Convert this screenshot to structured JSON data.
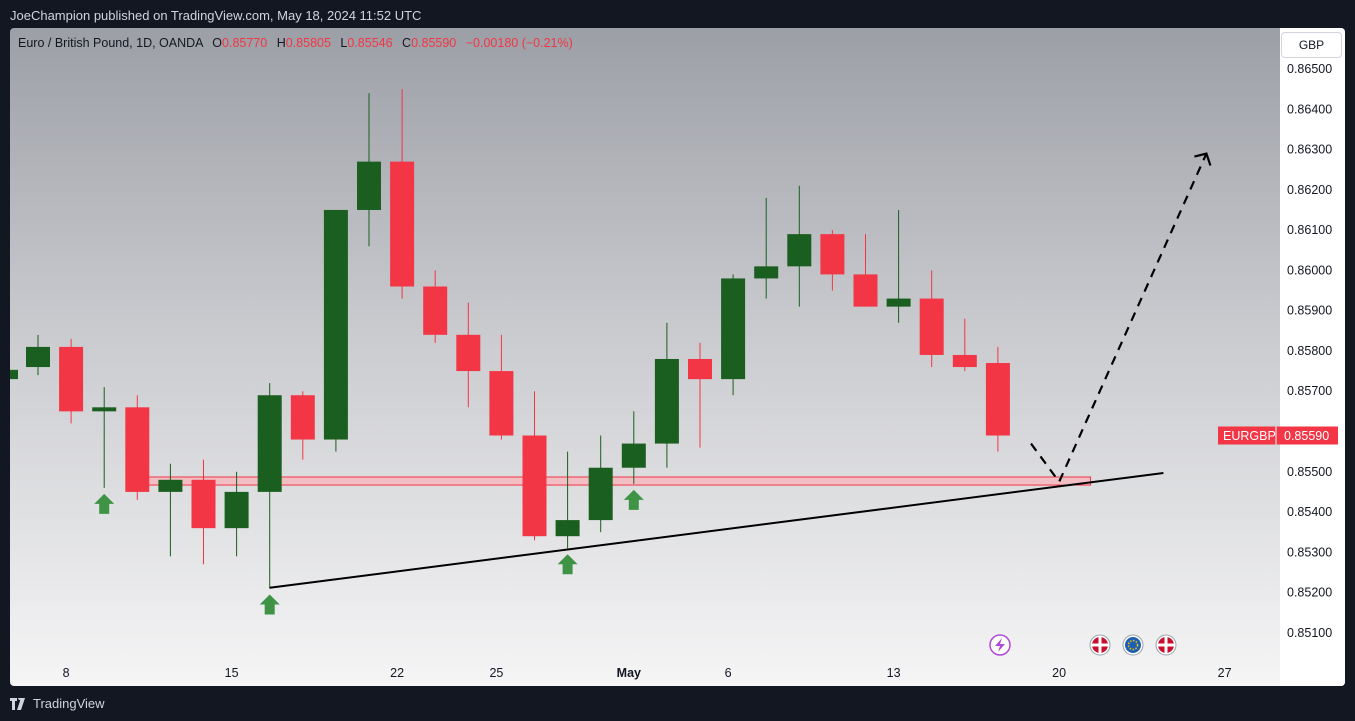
{
  "header": {
    "published": "JoeChampion published on TradingView.com, May 18, 2024 11:52 UTC"
  },
  "legend": {
    "symbol": "Euro / British Pound, 1D, OANDA",
    "o_label": "O",
    "o_value": "0.85770",
    "h_label": "H",
    "h_value": "0.85805",
    "l_label": "L",
    "l_value": "0.85546",
    "c_label": "C",
    "c_value": "0.85590",
    "change": "−0.00180 (−0.21%)"
  },
  "currency_button": "GBP",
  "price_tag": {
    "symbol": "EURGBP",
    "value": "0.85590"
  },
  "footer": {
    "brand": "TradingView"
  },
  "colors": {
    "up": "#1a5e20",
    "down": "#f23645",
    "zone_fill": "#f4b8be",
    "zone_stroke": "#f23645",
    "arrow": "#3e9444"
  },
  "chart_data": {
    "type": "candlestick",
    "ylim": [
      0.8505,
      0.8656
    ],
    "y_ticks": [
      "0.85100",
      "0.85200",
      "0.85300",
      "0.85400",
      "0.85500",
      "0.85600",
      "0.85700",
      "0.85800",
      "0.85900",
      "0.86000",
      "0.86100",
      "0.86200",
      "0.86300",
      "0.86400",
      "0.86500"
    ],
    "x_ticks": [
      {
        "label": "8",
        "slot": 0.85
      },
      {
        "label": "15",
        "slot": 5.85
      },
      {
        "label": "22",
        "slot": 10.85
      },
      {
        "label": "25",
        "slot": 13.85
      },
      {
        "label": "May",
        "slot": 17.85,
        "bold": true
      },
      {
        "label": "6",
        "slot": 20.85
      },
      {
        "label": "13",
        "slot": 25.85
      },
      {
        "label": "20",
        "slot": 30.85
      },
      {
        "label": "27",
        "slot": 35.85
      }
    ],
    "candles": [
      {
        "slot": 0,
        "o": 0.8576,
        "h": 0.8584,
        "l": 0.8574,
        "c": 0.8581
      },
      {
        "slot": 1,
        "o": 0.8581,
        "h": 0.8583,
        "l": 0.8562,
        "c": 0.8565
      },
      {
        "slot": 2,
        "o": 0.8565,
        "h": 0.8571,
        "l": 0.8546,
        "c": 0.8566
      },
      {
        "slot": 3,
        "o": 0.8566,
        "h": 0.8569,
        "l": 0.8543,
        "c": 0.8545
      },
      {
        "slot": 4,
        "o": 0.8545,
        "h": 0.8552,
        "l": 0.8529,
        "c": 0.8548
      },
      {
        "slot": 5,
        "o": 0.8548,
        "h": 0.8553,
        "l": 0.8527,
        "c": 0.8536
      },
      {
        "slot": 6,
        "o": 0.8536,
        "h": 0.855,
        "l": 0.8529,
        "c": 0.8545
      },
      {
        "slot": 7,
        "o": 0.8545,
        "h": 0.8572,
        "l": 0.8521,
        "c": 0.8569
      },
      {
        "slot": 8,
        "o": 0.8569,
        "h": 0.857,
        "l": 0.8553,
        "c": 0.8558
      },
      {
        "slot": 9,
        "o": 0.8558,
        "h": 0.8615,
        "l": 0.8555,
        "c": 0.8615
      },
      {
        "slot": 10,
        "o": 0.8615,
        "h": 0.8644,
        "l": 0.8606,
        "c": 0.8627
      },
      {
        "slot": 11,
        "o": 0.8627,
        "h": 0.8645,
        "l": 0.8593,
        "c": 0.8596
      },
      {
        "slot": 12,
        "o": 0.8596,
        "h": 0.86,
        "l": 0.8582,
        "c": 0.8584
      },
      {
        "slot": 13,
        "o": 0.8584,
        "h": 0.8592,
        "l": 0.8566,
        "c": 0.8575
      },
      {
        "slot": 14,
        "o": 0.8575,
        "h": 0.8584,
        "l": 0.8558,
        "c": 0.8559
      },
      {
        "slot": 15,
        "o": 0.8559,
        "h": 0.857,
        "l": 0.8533,
        "c": 0.8534
      },
      {
        "slot": 16,
        "o": 0.8534,
        "h": 0.8555,
        "l": 0.8531,
        "c": 0.8538
      },
      {
        "slot": 17,
        "o": 0.8538,
        "h": 0.8559,
        "l": 0.8535,
        "c": 0.8551
      },
      {
        "slot": 18,
        "o": 0.8551,
        "h": 0.8565,
        "l": 0.8547,
        "c": 0.8557
      },
      {
        "slot": 19,
        "o": 0.8557,
        "h": 0.8587,
        "l": 0.8551,
        "c": 0.8578
      },
      {
        "slot": 20,
        "o": 0.8578,
        "h": 0.8582,
        "l": 0.8556,
        "c": 0.8573
      },
      {
        "slot": 21,
        "o": 0.8573,
        "h": 0.8599,
        "l": 0.8569,
        "c": 0.8598
      },
      {
        "slot": 22,
        "o": 0.8598,
        "h": 0.8618,
        "l": 0.8593,
        "c": 0.8601
      },
      {
        "slot": 23,
        "o": 0.8601,
        "h": 0.8621,
        "l": 0.8591,
        "c": 0.8609
      },
      {
        "slot": 24,
        "o": 0.8609,
        "h": 0.861,
        "l": 0.8595,
        "c": 0.8599
      },
      {
        "slot": 25,
        "o": 0.8599,
        "h": 0.8609,
        "l": 0.8591,
        "c": 0.8591
      },
      {
        "slot": 26,
        "o": 0.8591,
        "h": 0.8615,
        "l": 0.8587,
        "c": 0.8593
      },
      {
        "slot": 27,
        "o": 0.8593,
        "h": 0.86,
        "l": 0.8576,
        "c": 0.8579
      },
      {
        "slot": 28,
        "o": 0.8579,
        "h": 0.8588,
        "l": 0.8575,
        "c": 0.8576
      },
      {
        "slot": 29,
        "o": 0.8577,
        "h": 0.8581,
        "l": 0.8555,
        "c": 0.8559
      }
    ],
    "support_zone": {
      "y_low": 0.85467,
      "y_high": 0.85487,
      "slot_start": 2.85,
      "slot_end": 31.8
    },
    "trendline": {
      "p1": {
        "slot": 7,
        "y": 0.85212
      },
      "p2": {
        "slot": 34,
        "y": 0.85497
      }
    },
    "projection": [
      {
        "slot": 30,
        "y": 0.8557
      },
      {
        "slot": 30.85,
        "y": 0.85475
      },
      {
        "slot": 35.3,
        "y": 0.8629
      }
    ],
    "buy_arrows": [
      {
        "slot": 2
      },
      {
        "slot": 7
      },
      {
        "slot": 16
      },
      {
        "slot": 18
      }
    ]
  }
}
